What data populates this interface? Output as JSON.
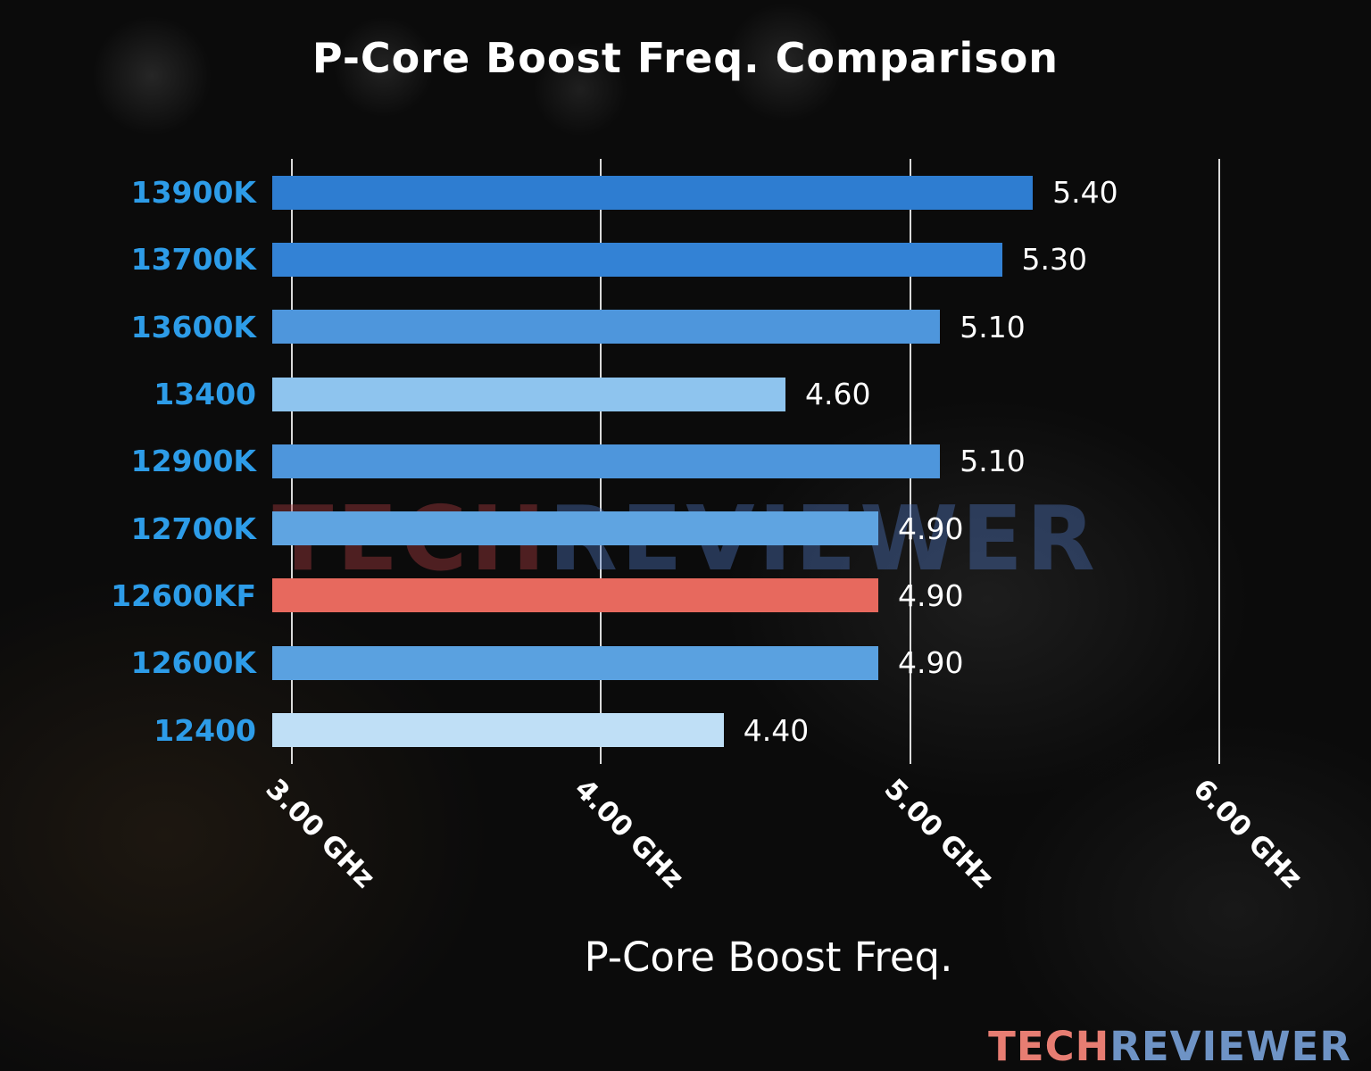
{
  "title": "P-Core Boost Freq. Comparison",
  "xlabel": "P-Core Boost Freq.",
  "watermark": {
    "part1": "TECH",
    "part2": "REVIEWER"
  },
  "brand": {
    "part1": "TECH",
    "part2": "REVIEWER"
  },
  "colors": {
    "category_label": "#2d9ce8",
    "value_label": "#ffffff",
    "highlight_bar": "#e7695e",
    "gridline": "#ffffff"
  },
  "chart_data": {
    "type": "bar",
    "orientation": "horizontal",
    "title": "P-Core Boost Freq. Comparison",
    "xlabel": "P-Core Boost Freq.",
    "categories": [
      "13900K",
      "13700K",
      "13600K",
      "13400",
      "12900K",
      "12700K",
      "12600KF",
      "12600K",
      "12400"
    ],
    "values": [
      5.4,
      5.3,
      5.1,
      4.6,
      5.1,
      4.9,
      4.9,
      4.9,
      4.4
    ],
    "value_labels": [
      "5.40",
      "5.30",
      "5.10",
      "4.60",
      "5.10",
      "4.90",
      "4.90",
      "4.90",
      "4.40"
    ],
    "bar_colors": [
      "#2e7dd1",
      "#3382d5",
      "#4e96dc",
      "#8ec4ee",
      "#4e96dc",
      "#5fa4e1",
      "#e7695e",
      "#5aa1e0",
      "#bfdff6"
    ],
    "highlight_index": 6,
    "unit": "GHz",
    "xticks": [
      3,
      4,
      5,
      6
    ],
    "xtick_labels": [
      "3.00 GHz",
      "4.00 GHz",
      "5.00 GHz",
      "6.00 GHz"
    ],
    "xmin": 2.94,
    "xmax": 6.15,
    "grid": true,
    "legend": null
  }
}
